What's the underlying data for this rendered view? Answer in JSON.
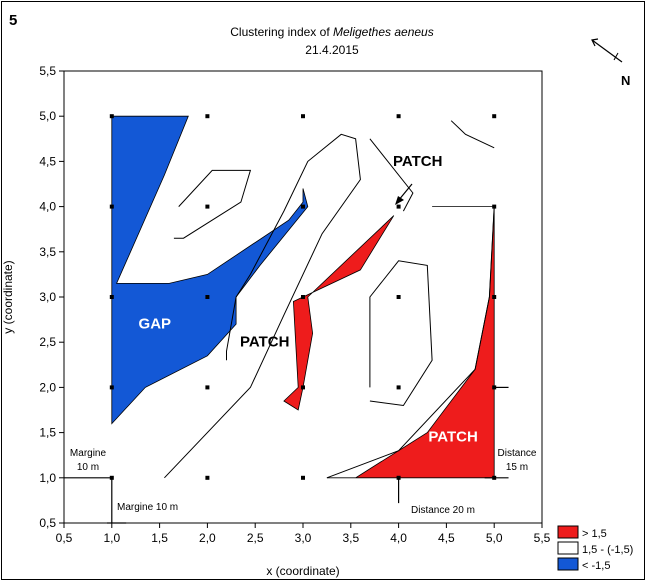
{
  "figure_label": "5",
  "north_label": "N",
  "colors": {
    "high": "#ee1c1c",
    "low": "#1358d6",
    "neutral": "#ffffff"
  },
  "chart_data": {
    "type": "contour",
    "title_prefix": "Clustering index of ",
    "title_species": "Meligethes aeneus",
    "subtitle": "21.4.2015",
    "xlabel": "x (coordinate)",
    "ylabel": "y (coordinate)",
    "xlim": [
      0.5,
      5.5
    ],
    "ylim": [
      0.5,
      5.5
    ],
    "xticks": [
      "0,5",
      "1,0",
      "1,5",
      "2,0",
      "2,5",
      "3,0",
      "3,5",
      "4,0",
      "4,5",
      "5,0",
      "5,5"
    ],
    "yticks": [
      "0,5",
      "1,0",
      "1,5",
      "2,0",
      "2,5",
      "3,0",
      "3,5",
      "4,0",
      "4,5",
      "5,0",
      "5,5"
    ],
    "grid": false,
    "sampling_points": [
      [
        1,
        1
      ],
      [
        2,
        1
      ],
      [
        3,
        1
      ],
      [
        4,
        1
      ],
      [
        5,
        1
      ],
      [
        1,
        2
      ],
      [
        2,
        2
      ],
      [
        3,
        2
      ],
      [
        4,
        2
      ],
      [
        5,
        2
      ],
      [
        1,
        3
      ],
      [
        2,
        3
      ],
      [
        3,
        3
      ],
      [
        4,
        3
      ],
      [
        5,
        3
      ],
      [
        1,
        4
      ],
      [
        2,
        4
      ],
      [
        3,
        4
      ],
      [
        4,
        4
      ],
      [
        5,
        4
      ],
      [
        1,
        5
      ],
      [
        2,
        5
      ],
      [
        3,
        5
      ],
      [
        4,
        5
      ],
      [
        5,
        5
      ]
    ],
    "regions": [
      {
        "class": "low",
        "points": [
          [
            1,
            5
          ],
          [
            1.8,
            5
          ],
          [
            1.55,
            4.35
          ],
          [
            1.05,
            3.15
          ],
          [
            1.6,
            3.15
          ],
          [
            2.0,
            3.25
          ],
          [
            2.85,
            3.85
          ],
          [
            3.0,
            4.05
          ],
          [
            3.0,
            4.2
          ],
          [
            3.05,
            4.0
          ],
          [
            2.55,
            3.35
          ],
          [
            2.3,
            3.0
          ],
          [
            2.3,
            2.7
          ],
          [
            2.0,
            2.35
          ],
          [
            1.35,
            2.0
          ],
          [
            1.0,
            1.6
          ]
        ]
      },
      {
        "class": "high",
        "points": [
          [
            3.6,
            3.3
          ],
          [
            3.95,
            3.9
          ],
          [
            3.05,
            3.0
          ],
          [
            3.1,
            2.6
          ],
          [
            3.0,
            2.0
          ],
          [
            2.95,
            1.75
          ],
          [
            2.8,
            1.85
          ],
          [
            2.95,
            2.0
          ],
          [
            2.9,
            2.95
          ]
        ]
      },
      {
        "class": "high",
        "points": [
          [
            4.35,
            4.0
          ],
          [
            5.0,
            4.0
          ],
          [
            4.95,
            3.0
          ],
          [
            4.8,
            2.2
          ],
          [
            4.3,
            1.5
          ],
          [
            3.55,
            1.0
          ],
          [
            3.25,
            1.0
          ],
          [
            5.0,
            1.0
          ],
          [
            5.0,
            2.0
          ],
          [
            5.0,
            4.0
          ]
        ]
      }
    ],
    "contours": [
      [
        [
          1.65,
          3.65
        ],
        [
          1.75,
          3.65
        ],
        [
          2.35,
          4.05
        ],
        [
          2.45,
          4.4
        ],
        [
          2.05,
          4.4
        ],
        [
          1.7,
          4.0
        ]
      ],
      [
        [
          1.55,
          1.0
        ],
        [
          2.45,
          2.0
        ],
        [
          2.8,
          2.8
        ],
        [
          3.2,
          3.7
        ],
        [
          3.6,
          4.3
        ],
        [
          3.55,
          4.75
        ],
        [
          3.4,
          4.8
        ],
        [
          3.05,
          4.5
        ],
        [
          2.8,
          3.95
        ],
        [
          2.45,
          3.25
        ],
        [
          2.3,
          3.0
        ],
        [
          2.2,
          2.4
        ],
        [
          2.2,
          2.3
        ]
      ],
      [
        [
          3.7,
          2.0
        ],
        [
          3.7,
          3.0
        ],
        [
          4.0,
          3.4
        ],
        [
          4.3,
          3.35
        ],
        [
          4.35,
          2.3
        ],
        [
          4.05,
          1.8
        ],
        [
          3.7,
          1.85
        ]
      ],
      [
        [
          3.7,
          4.75
        ],
        [
          4.15,
          4.15
        ],
        [
          4.05,
          3.95
        ]
      ],
      [
        [
          4.55,
          4.95
        ],
        [
          4.7,
          4.8
        ],
        [
          5.0,
          4.65
        ]
      ],
      [
        [
          3.25,
          1.0
        ],
        [
          4.0,
          1.3
        ],
        [
          4.8,
          2.2
        ],
        [
          4.95,
          3.0
        ],
        [
          5.0,
          4.0
        ]
      ]
    ],
    "annotations": [
      {
        "text": "GAP",
        "x": 1.45,
        "y": 2.65,
        "color": "#ffffff"
      },
      {
        "text": "PATCH",
        "x": 2.6,
        "y": 2.45,
        "color": "#000000"
      },
      {
        "text": "PATCH",
        "x": 4.2,
        "y": 4.45,
        "color": "#000000"
      },
      {
        "text": "PATCH",
        "x": 4.57,
        "y": 1.4,
        "color": "#ffffff"
      }
    ],
    "margin_labels": {
      "left_margin": [
        "Margine",
        "10 m"
      ],
      "bottom_margin": "Margine 10 m",
      "distance_bottom": "Distance 20 m",
      "distance_right": [
        "Distance",
        "15 m"
      ]
    },
    "legend": [
      {
        "class": "high",
        "label": "> 1,5"
      },
      {
        "class": "neutral",
        "label": "1,5 - (-1,5)"
      },
      {
        "class": "low",
        "label": "< -1,5"
      }
    ],
    "legend_position": "bottom-right"
  }
}
